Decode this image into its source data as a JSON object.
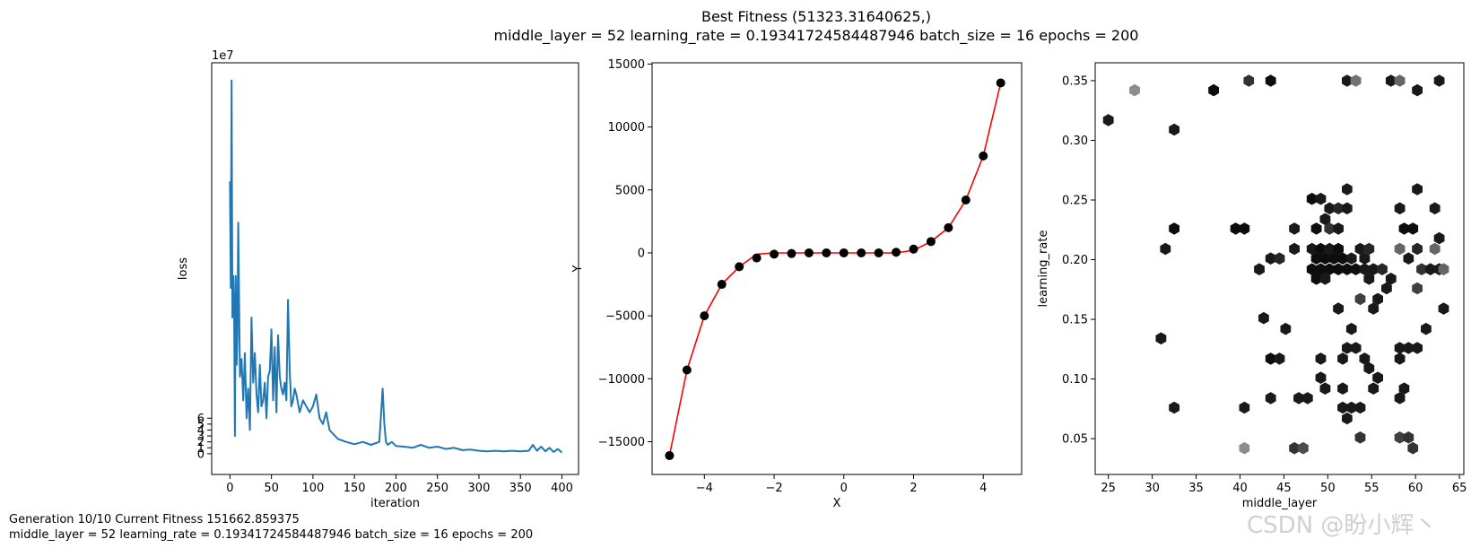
{
  "suptitle": {
    "line1": "Best Fitness (51323.31640625,)",
    "line2": "middle_layer = 52 learning_rate = 0.19341724584487946 batch_size = 16 epochs = 200"
  },
  "footer": {
    "line1": "Generation 10/10 Current Fitness 151662.859375",
    "line2": "middle_layer = 52 learning_rate = 0.19341724584487946 batch_size = 16 epochs = 200"
  },
  "watermark": "CSDN @盼小辉丶",
  "colors": {
    "loss_line": "#1f77b4",
    "fit_line": "#ff0000",
    "points": "#000000"
  },
  "chart_data": [
    {
      "type": "line",
      "xlabel": "iteration",
      "ylabel": "loss",
      "offset_text": "1e7",
      "xlim": [
        -22,
        420
      ],
      "ylim": [
        -3.5,
        66
      ],
      "xticks": [
        0,
        50,
        100,
        150,
        200,
        250,
        300,
        350,
        400
      ],
      "yticks": [
        0,
        1,
        2,
        3,
        4,
        5,
        6
      ],
      "series": [
        {
          "x": [
            0,
            1,
            2,
            3,
            4,
            5,
            6,
            7,
            8,
            9,
            10,
            12,
            14,
            16,
            18,
            20,
            22,
            24,
            26,
            28,
            30,
            32,
            34,
            36,
            38,
            40,
            42,
            44,
            46,
            48,
            50,
            52,
            54,
            56,
            58,
            60,
            62,
            64,
            66,
            68,
            70,
            72,
            74,
            76,
            78,
            80,
            84,
            88,
            92,
            96,
            100,
            104,
            108,
            112,
            116,
            120,
            130,
            140,
            150,
            160,
            170,
            180,
            184,
            186,
            188,
            190,
            195,
            200,
            210,
            220,
            230,
            240,
            250,
            260,
            270,
            280,
            290,
            300,
            310,
            320,
            330,
            340,
            350,
            360,
            365,
            370,
            375,
            380,
            385,
            390,
            395,
            400
          ],
          "values": [
            46,
            28,
            63,
            23,
            30,
            25,
            3,
            30,
            15,
            20,
            39,
            13,
            16,
            9,
            17,
            6,
            11,
            4,
            23,
            12,
            17,
            10,
            7,
            15,
            8,
            9,
            12,
            6,
            13,
            14,
            21,
            9,
            18,
            7,
            20,
            13,
            11,
            10,
            12,
            9,
            26,
            14,
            8,
            9,
            11,
            10,
            7,
            9,
            8,
            7,
            8,
            10,
            6,
            5,
            7,
            4,
            2.5,
            2,
            1.6,
            2,
            1.5,
            2,
            11,
            5,
            2,
            1.5,
            2,
            1.3,
            1.2,
            1,
            1.5,
            1,
            1.2,
            0.8,
            1,
            0.6,
            0.7,
            0.5,
            0.4,
            0.5,
            0.4,
            0.5,
            0.4,
            0.5,
            1.5,
            0.5,
            1.2,
            0.4,
            1,
            0.3,
            0.8,
            0.2
          ]
        }
      ]
    },
    {
      "type": "scatter",
      "xlabel": "X",
      "ylabel": "Y",
      "xlim": [
        -5.5,
        5.1
      ],
      "ylim": [
        -17600,
        15100
      ],
      "xticks": [
        -4,
        -2,
        0,
        2,
        4
      ],
      "yticks": [
        -15000,
        -10000,
        -5000,
        0,
        5000,
        10000,
        15000
      ],
      "points": {
        "x": [
          -5,
          -4.5,
          -4,
          -3.5,
          -3,
          -2.5,
          -2,
          -1.5,
          -1,
          -0.5,
          0,
          0.5,
          1,
          1.5,
          2,
          2.5,
          3,
          3.5,
          4,
          4.5
        ],
        "y": [
          -16100,
          -9300,
          -5000,
          -2500,
          -1100,
          -400,
          -100,
          -50,
          0,
          0,
          0,
          0,
          0,
          50,
          300,
          900,
          2000,
          4200,
          7700,
          13500
        ]
      },
      "line": {
        "x": [
          -5,
          -4.5,
          -4,
          -3.5,
          -3,
          -2.5,
          -2,
          -1.5,
          -1,
          -0.5,
          0,
          0.5,
          1,
          1.5,
          2,
          2.5,
          3,
          3.5,
          4,
          4.5
        ],
        "y": [
          -16100,
          -9300,
          -5000,
          -2500,
          -1100,
          -100,
          0,
          0,
          0,
          0,
          0,
          0,
          0,
          0,
          200,
          900,
          2000,
          4200,
          7700,
          13500
        ]
      }
    },
    {
      "type": "heatmap",
      "subtype": "hexbin",
      "xlabel": "middle_layer",
      "ylabel": "learning_rate",
      "xlim": [
        23.5,
        65.5
      ],
      "ylim": [
        0.02,
        0.365
      ],
      "xticks": [
        25,
        30,
        35,
        40,
        45,
        50,
        55,
        60,
        65
      ],
      "yticks": [
        0.05,
        0.1,
        0.15,
        0.2,
        0.25,
        0.3,
        0.35
      ],
      "bins": [
        [
          25,
          0.317,
          0.9
        ],
        [
          28,
          0.342,
          0.45
        ],
        [
          32.5,
          0.309,
          0.9
        ],
        [
          32.5,
          0.226,
          0.95
        ],
        [
          31.5,
          0.209,
          0.9
        ],
        [
          31,
          0.134,
          0.9
        ],
        [
          32.5,
          0.076,
          0.9
        ],
        [
          37,
          0.342,
          0.95
        ],
        [
          41,
          0.35,
          0.8
        ],
        [
          43.5,
          0.35,
          0.95
        ],
        [
          39.5,
          0.226,
          0.95
        ],
        [
          40.5,
          0.226,
          0.95
        ],
        [
          43.5,
          0.201,
          0.9
        ],
        [
          44.5,
          0.201,
          0.85
        ],
        [
          42.2,
          0.192,
          0.9
        ],
        [
          42.7,
          0.151,
          0.9
        ],
        [
          45.2,
          0.142,
          0.9
        ],
        [
          43.5,
          0.117,
          0.95
        ],
        [
          44.5,
          0.117,
          0.9
        ],
        [
          43.5,
          0.084,
          0.9
        ],
        [
          40.5,
          0.076,
          0.9
        ],
        [
          40.5,
          0.042,
          0.45
        ],
        [
          46.2,
          0.042,
          0.8
        ],
        [
          47.2,
          0.042,
          0.7
        ],
        [
          46.2,
          0.226,
          0.9
        ],
        [
          46.2,
          0.209,
          0.9
        ],
        [
          46.7,
          0.084,
          0.9
        ],
        [
          47.7,
          0.084,
          0.9
        ],
        [
          48.2,
          0.251,
          0.95
        ],
        [
          49.2,
          0.251,
          0.9
        ],
        [
          50.2,
          0.243,
          0.9
        ],
        [
          51.2,
          0.243,
          0.85
        ],
        [
          52.2,
          0.243,
          0.9
        ],
        [
          49.7,
          0.234,
          0.9
        ],
        [
          48.7,
          0.226,
          0.95
        ],
        [
          50.2,
          0.226,
          0.8
        ],
        [
          51.2,
          0.226,
          0.9
        ],
        [
          48.2,
          0.209,
          0.9
        ],
        [
          49.2,
          0.209,
          0.95
        ],
        [
          50.2,
          0.209,
          0.9
        ],
        [
          51.2,
          0.209,
          0.95
        ],
        [
          48.7,
          0.201,
          0.95
        ],
        [
          49.7,
          0.201,
          0.95
        ],
        [
          50.7,
          0.201,
          0.95
        ],
        [
          51.7,
          0.201,
          0.95
        ],
        [
          52.7,
          0.201,
          0.9
        ],
        [
          48.2,
          0.192,
          0.95
        ],
        [
          49.2,
          0.192,
          0.95
        ],
        [
          50.2,
          0.192,
          0.95
        ],
        [
          51.2,
          0.192,
          0.95
        ],
        [
          52.2,
          0.192,
          0.95
        ],
        [
          53.2,
          0.192,
          0.95
        ],
        [
          54.2,
          0.192,
          0.9
        ],
        [
          55.2,
          0.192,
          0.9
        ],
        [
          48.7,
          0.184,
          0.95
        ],
        [
          49.7,
          0.184,
          0.9
        ],
        [
          54.7,
          0.184,
          0.9
        ],
        [
          52.2,
          0.259,
          0.9
        ],
        [
          53.7,
          0.209,
          0.9
        ],
        [
          54.7,
          0.209,
          0.85
        ],
        [
          54.2,
          0.201,
          0.9
        ],
        [
          56.2,
          0.192,
          0.85
        ],
        [
          57.2,
          0.184,
          0.9
        ],
        [
          56.7,
          0.176,
          0.9
        ],
        [
          55.7,
          0.167,
          0.9
        ],
        [
          53.7,
          0.167,
          0.75
        ],
        [
          51.2,
          0.159,
          0.9
        ],
        [
          55.2,
          0.159,
          0.9
        ],
        [
          52.7,
          0.142,
          0.9
        ],
        [
          52.2,
          0.126,
          0.9
        ],
        [
          53.2,
          0.126,
          0.9
        ],
        [
          51.7,
          0.117,
          0.9
        ],
        [
          54.2,
          0.117,
          0.9
        ],
        [
          54.7,
          0.109,
          0.9
        ],
        [
          55.7,
          0.101,
          0.9
        ],
        [
          49.2,
          0.117,
          0.9
        ],
        [
          49.2,
          0.101,
          0.9
        ],
        [
          49.7,
          0.092,
          0.9
        ],
        [
          55.2,
          0.092,
          0.9
        ],
        [
          51.7,
          0.092,
          0.9
        ],
        [
          51.7,
          0.076,
          0.9
        ],
        [
          52.7,
          0.076,
          0.9
        ],
        [
          53.7,
          0.076,
          0.9
        ],
        [
          52.2,
          0.067,
          0.9
        ],
        [
          53.7,
          0.051,
          0.8
        ],
        [
          58.2,
          0.243,
          0.9
        ],
        [
          58.7,
          0.226,
          0.95
        ],
        [
          59.7,
          0.226,
          0.95
        ],
        [
          58.2,
          0.209,
          0.6
        ],
        [
          60.2,
          0.209,
          0.85
        ],
        [
          59.2,
          0.201,
          0.9
        ],
        [
          60.7,
          0.192,
          0.8
        ],
        [
          61.7,
          0.192,
          0.9
        ],
        [
          62.7,
          0.192,
          0.9
        ],
        [
          63.2,
          0.192,
          0.6
        ],
        [
          62.2,
          0.209,
          0.6
        ],
        [
          62.7,
          0.218,
          0.9
        ],
        [
          62.2,
          0.243,
          0.9
        ],
        [
          60.2,
          0.259,
          0.9
        ],
        [
          60.2,
          0.176,
          0.75
        ],
        [
          63.2,
          0.159,
          0.9
        ],
        [
          61.2,
          0.142,
          0.9
        ],
        [
          58.2,
          0.126,
          0.9
        ],
        [
          59.2,
          0.126,
          0.9
        ],
        [
          60.2,
          0.126,
          0.9
        ],
        [
          58.2,
          0.117,
          0.9
        ],
        [
          58.7,
          0.092,
          0.9
        ],
        [
          58.2,
          0.084,
          0.9
        ],
        [
          58.2,
          0.051,
          0.75
        ],
        [
          59.2,
          0.051,
          0.8
        ],
        [
          59.7,
          0.042,
          0.8
        ],
        [
          52.2,
          0.35,
          0.9
        ],
        [
          53.2,
          0.35,
          0.55
        ],
        [
          57.2,
          0.35,
          0.9
        ],
        [
          58.2,
          0.35,
          0.6
        ],
        [
          60.2,
          0.342,
          0.9
        ],
        [
          62.7,
          0.35,
          0.9
        ]
      ]
    }
  ]
}
